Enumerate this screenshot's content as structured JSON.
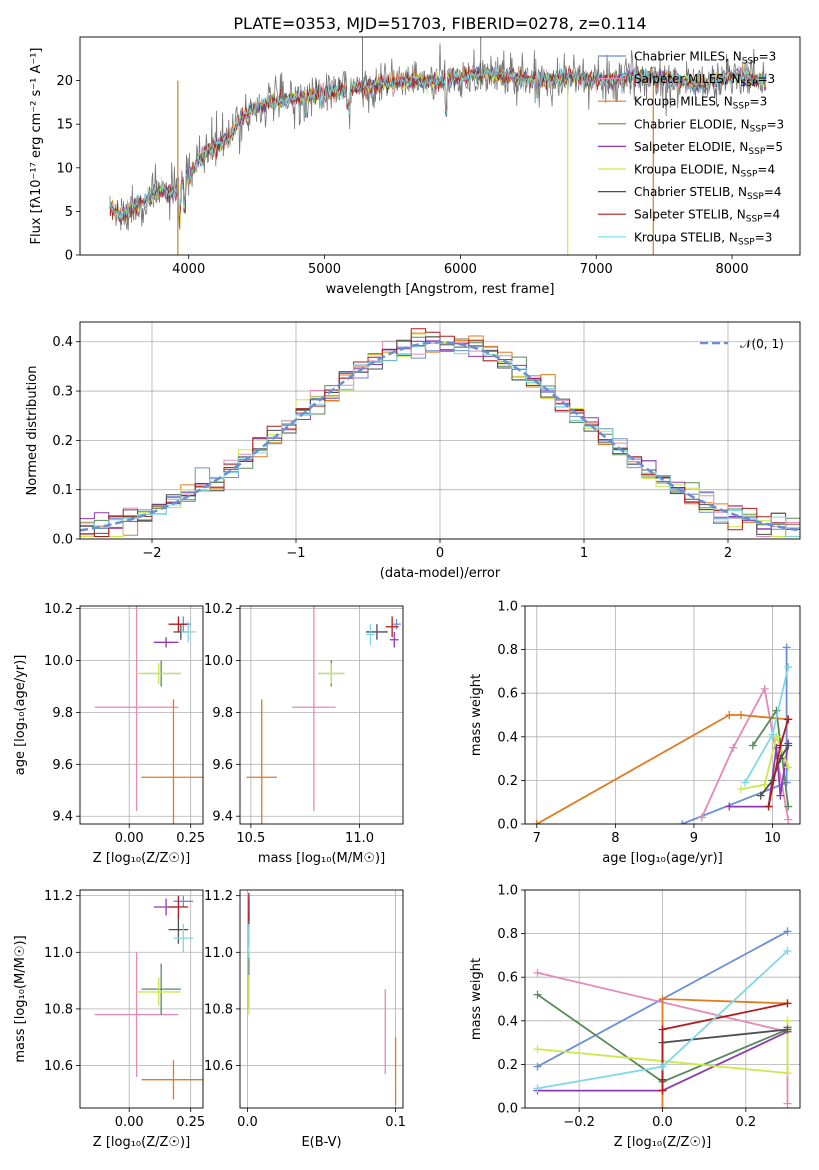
{
  "figure": {
    "title": "PLATE=0353, MJD=51703, FIBERID=0278, z=0.114"
  },
  "models": [
    {
      "name": "Chabrier MILES",
      "n_ssp": "3",
      "color": "#6a8fd6"
    },
    {
      "name": "Salpeter MILES",
      "n_ssp": "3",
      "color": "#e589b8"
    },
    {
      "name": "Kroupa MILES",
      "n_ssp": "3",
      "color": "#e07b1f"
    },
    {
      "name": "Chabrier ELODIE",
      "n_ssp": "3",
      "color": "#5a8a5a"
    },
    {
      "name": "Salpeter ELODIE",
      "n_ssp": "5",
      "color": "#8e3ab5"
    },
    {
      "name": "Kroupa ELODIE",
      "n_ssp": "4",
      "color": "#cde84a"
    },
    {
      "name": "Chabrier STELIB",
      "n_ssp": "4",
      "color": "#4f4f4f"
    },
    {
      "name": "Salpeter STELIB",
      "n_ssp": "4",
      "color": "#b01c1c"
    },
    {
      "name": "Kroupa STELIB",
      "n_ssp": "3",
      "color": "#7fd8e3"
    }
  ],
  "chart_data": [
    {
      "id": "spectrum",
      "type": "line",
      "xlabel": "wavelength [Angstrom, rest frame]",
      "ylabel": "Flux [fλ10⁻¹⁷ erg cm⁻² s⁻¹ A⁻¹]",
      "xlim": [
        3200,
        8500
      ],
      "ylim": [
        0,
        25
      ],
      "xticks": [
        4000,
        5000,
        6000,
        7000,
        8000
      ],
      "yticks": [
        0,
        5,
        10,
        15,
        20
      ],
      "grid": false,
      "legend": "top-right",
      "continuum_x": [
        3420,
        3500,
        3600,
        3700,
        3800,
        3900,
        4000,
        4100,
        4200,
        4300,
        4400,
        4500,
        4600,
        4800,
        5000,
        5200,
        5400,
        5600,
        5800,
        6000,
        6200,
        6400,
        6600,
        6800,
        7000,
        7200,
        7400,
        7600,
        7800,
        8000,
        8250
      ],
      "continuum_y": [
        5.5,
        4.5,
        5.5,
        6.5,
        7.5,
        7.0,
        9.0,
        11.5,
        12.5,
        13.5,
        16.0,
        17.0,
        17.5,
        18.0,
        18.5,
        19.0,
        19.5,
        20.0,
        19.8,
        20.5,
        20.8,
        20.5,
        20.0,
        20.5,
        20.0,
        20.2,
        20.5,
        20.0,
        19.5,
        20.5,
        20.0
      ],
      "dropouts": [
        {
          "x": 3920,
          "model": "Kroupa MILES"
        },
        {
          "x": 6790,
          "model": "Kroupa ELODIE"
        },
        {
          "x": 7420,
          "model": "Kroupa MILES"
        }
      ]
    },
    {
      "id": "residuals",
      "type": "histogram",
      "xlabel": "(data-model)/error",
      "ylabel": "Normed distribution",
      "xlim": [
        -2.5,
        2.5
      ],
      "ylim": [
        0,
        0.44
      ],
      "xticks": [
        -2,
        -1,
        0,
        1,
        2
      ],
      "yticks": [
        0.0,
        0.1,
        0.2,
        0.3,
        0.4
      ],
      "grid": true,
      "legend": "top-right",
      "reference_curve": "𝒩(0, 1)",
      "bin_width": 0.1
    },
    {
      "id": "age-vs-Z",
      "type": "errorbar",
      "xlabel": "Z [log₁₀(Z/Z☉)]",
      "ylabel": "age  [log₁₀(age/yr)]",
      "xlim": [
        -0.2,
        0.3
      ],
      "ylim": [
        9.37,
        10.21
      ],
      "xticks": [
        0.0,
        0.25
      ],
      "yticks": [
        9.4,
        9.6,
        9.8,
        10.0,
        10.2
      ],
      "grid": true,
      "points": [
        {
          "model": "Chabrier MILES",
          "x": 0.22,
          "y": 10.14,
          "xerr": 0.03,
          "yerr": 0.03
        },
        {
          "model": "Salpeter MILES",
          "x": 0.03,
          "y": 9.82,
          "xerr": 0.17,
          "yerr": 0.4
        },
        {
          "model": "Kroupa MILES",
          "x": 0.18,
          "y": 9.55,
          "xerr": 0.13,
          "yerr": 0.3
        },
        {
          "model": "Chabrier ELODIE",
          "x": 0.13,
          "y": 9.95,
          "xerr": 0.08,
          "yerr": 0.05
        },
        {
          "model": "Salpeter ELODIE",
          "x": 0.15,
          "y": 10.07,
          "xerr": 0.05,
          "yerr": 0.02
        },
        {
          "model": "Kroupa ELODIE",
          "x": 0.12,
          "y": 9.95,
          "xerr": 0.09,
          "yerr": 0.04
        },
        {
          "model": "Chabrier STELIB",
          "x": 0.21,
          "y": 10.11,
          "xerr": 0.03,
          "yerr": 0.03
        },
        {
          "model": "Salpeter STELIB",
          "x": 0.2,
          "y": 10.14,
          "xerr": 0.04,
          "yerr": 0.03
        },
        {
          "model": "Kroupa STELIB",
          "x": 0.24,
          "y": 10.11,
          "xerr": 0.03,
          "yerr": 0.04
        }
      ]
    },
    {
      "id": "age-vs-mass",
      "type": "errorbar",
      "xlabel": "mass [log₁₀(M/M☉)]",
      "ylabel": "",
      "xlim": [
        10.45,
        11.2
      ],
      "ylim": [
        9.37,
        10.21
      ],
      "xticks": [
        10.5,
        11.0
      ],
      "yticks": [
        9.4,
        9.6,
        9.8,
        10.0,
        10.2
      ],
      "grid": true,
      "points": [
        {
          "model": "Chabrier MILES",
          "x": 11.17,
          "y": 10.14,
          "xerr": 0.02,
          "yerr": 0.02
        },
        {
          "model": "Salpeter MILES",
          "x": 10.79,
          "y": 9.82,
          "xerr": 0.1,
          "yerr": 0.4
        },
        {
          "model": "Kroupa MILES",
          "x": 10.55,
          "y": 9.55,
          "xerr": 0.07,
          "yerr": 0.3
        },
        {
          "model": "Chabrier ELODIE",
          "x": 10.87,
          "y": 9.95,
          "xerr": 0.06,
          "yerr": 0.05
        },
        {
          "model": "Salpeter ELODIE",
          "x": 11.16,
          "y": 10.08,
          "xerr": 0.02,
          "yerr": 0.03
        },
        {
          "model": "Kroupa ELODIE",
          "x": 10.87,
          "y": 9.95,
          "xerr": 0.06,
          "yerr": 0.04
        },
        {
          "model": "Chabrier STELIB",
          "x": 11.08,
          "y": 10.11,
          "xerr": 0.05,
          "yerr": 0.03
        },
        {
          "model": "Salpeter STELIB",
          "x": 11.15,
          "y": 10.13,
          "xerr": 0.03,
          "yerr": 0.04
        },
        {
          "model": "Kroupa STELIB",
          "x": 11.05,
          "y": 10.1,
          "xerr": 0.02,
          "yerr": 0.04
        }
      ]
    },
    {
      "id": "weight-vs-age",
      "type": "line",
      "xlabel": "age  [log₁₀(age/yr)]",
      "ylabel": "mass weight",
      "xlim": [
        6.85,
        10.35
      ],
      "ylim": [
        0,
        1
      ],
      "xticks": [
        7,
        8,
        9,
        10
      ],
      "yticks": [
        0.0,
        0.2,
        0.4,
        0.6,
        0.8,
        1.0
      ],
      "grid": true,
      "series": [
        {
          "model": "Chabrier MILES",
          "x": [
            8.85,
            10.18,
            10.18
          ],
          "y": [
            0.0,
            0.19,
            0.81
          ]
        },
        {
          "model": "Salpeter MILES",
          "x": [
            9.1,
            9.5,
            9.9,
            10.2
          ],
          "y": [
            0.03,
            0.35,
            0.62,
            0.02
          ]
        },
        {
          "model": "Kroupa MILES",
          "x": [
            7.0,
            9.45,
            9.6,
            10.2
          ],
          "y": [
            0.0,
            0.5,
            0.5,
            0.48
          ]
        },
        {
          "model": "Chabrier ELODIE",
          "x": [
            9.75,
            10.05,
            10.2
          ],
          "y": [
            0.36,
            0.52,
            0.08
          ]
        },
        {
          "model": "Salpeter ELODIE",
          "x": [
            9.45,
            9.95,
            10.05,
            10.1,
            10.2
          ],
          "y": [
            0.08,
            0.08,
            0.35,
            0.13,
            0.37
          ]
        },
        {
          "model": "Kroupa ELODIE",
          "x": [
            9.6,
            9.9,
            10.05,
            10.2
          ],
          "y": [
            0.16,
            0.18,
            0.4,
            0.26
          ]
        },
        {
          "model": "Chabrier STELIB",
          "x": [
            9.85,
            10.0,
            10.1,
            10.2
          ],
          "y": [
            0.13,
            0.2,
            0.3,
            0.36
          ]
        },
        {
          "model": "Salpeter STELIB",
          "x": [
            9.95,
            10.1,
            10.2
          ],
          "y": [
            0.08,
            0.36,
            0.48
          ]
        },
        {
          "model": "Kroupa STELIB",
          "x": [
            9.65,
            10.0,
            10.2
          ],
          "y": [
            0.19,
            0.41,
            0.72
          ]
        }
      ]
    },
    {
      "id": "mass-vs-Z",
      "type": "errorbar",
      "xlabel": "Z [log₁₀(Z/Z☉)]",
      "ylabel": "mass [log₁₀(M/M☉)]",
      "xlim": [
        -0.2,
        0.3
      ],
      "ylim": [
        10.45,
        11.22
      ],
      "xticks": [
        0.0,
        0.25
      ],
      "yticks": [
        10.6,
        10.8,
        11.0,
        11.2
      ],
      "grid": true,
      "points": [
        {
          "model": "Chabrier MILES",
          "x": 0.22,
          "y": 11.18,
          "xerr": 0.04,
          "yerr": 0.02
        },
        {
          "model": "Salpeter MILES",
          "x": 0.03,
          "y": 10.78,
          "xerr": 0.17,
          "yerr": 0.22
        },
        {
          "model": "Kroupa MILES",
          "x": 0.18,
          "y": 10.55,
          "xerr": 0.13,
          "yerr": 0.07
        },
        {
          "model": "Chabrier ELODIE",
          "x": 0.13,
          "y": 10.87,
          "xerr": 0.08,
          "yerr": 0.09
        },
        {
          "model": "Salpeter ELODIE",
          "x": 0.15,
          "y": 11.16,
          "xerr": 0.05,
          "yerr": 0.03
        },
        {
          "model": "Kroupa ELODIE",
          "x": 0.12,
          "y": 10.86,
          "xerr": 0.09,
          "yerr": 0.05
        },
        {
          "model": "Chabrier STELIB",
          "x": 0.2,
          "y": 11.08,
          "xerr": 0.04,
          "yerr": 0.05
        },
        {
          "model": "Salpeter STELIB",
          "x": 0.2,
          "y": 11.16,
          "xerr": 0.04,
          "yerr": 0.04
        },
        {
          "model": "Kroupa STELIB",
          "x": 0.22,
          "y": 11.05,
          "xerr": 0.04,
          "yerr": 0.05
        }
      ]
    },
    {
      "id": "mass-vs-ebv",
      "type": "errorbar",
      "xlabel": "E(B-V)",
      "ylabel": "",
      "xlim": [
        -0.005,
        0.105
      ],
      "ylim": [
        10.45,
        11.22
      ],
      "xticks": [
        0.0,
        0.1
      ],
      "yticks": [
        10.6,
        10.8,
        11.0,
        11.2
      ],
      "grid": true,
      "points": [
        {
          "model": "Chabrier MILES",
          "x": 0.001,
          "y": 11.15,
          "xerr": 0,
          "yerr": 0.05
        },
        {
          "model": "Salpeter MILES",
          "x": 0.093,
          "y": 10.72,
          "xerr": 0,
          "yerr": 0.15
        },
        {
          "model": "Kroupa MILES",
          "x": 0.1,
          "y": 10.58,
          "xerr": 0,
          "yerr": 0.12
        },
        {
          "model": "Chabrier ELODIE",
          "x": 0.001,
          "y": 10.9,
          "xerr": 0,
          "yerr": 0.1
        },
        {
          "model": "Salpeter ELODIE",
          "x": 0.001,
          "y": 11.14,
          "xerr": 0,
          "yerr": 0.05
        },
        {
          "model": "Kroupa ELODIE",
          "x": 0.001,
          "y": 10.85,
          "xerr": 0,
          "yerr": 0.07
        },
        {
          "model": "Chabrier STELIB",
          "x": 0.001,
          "y": 11.08,
          "xerr": 0,
          "yerr": 0.06
        },
        {
          "model": "Salpeter STELIB",
          "x": 0.001,
          "y": 11.16,
          "xerr": 0,
          "yerr": 0.05
        },
        {
          "model": "Kroupa STELIB",
          "x": 0.001,
          "y": 11.04,
          "xerr": 0,
          "yerr": 0.06
        }
      ]
    },
    {
      "id": "weight-vs-Z",
      "type": "line",
      "xlabel": "Z [log₁₀(Z/Z☉)]",
      "ylabel": "mass weight",
      "xlim": [
        -0.33,
        0.33
      ],
      "ylim": [
        0,
        1
      ],
      "xticks": [
        -0.2,
        0.0,
        0.2
      ],
      "yticks": [
        0.0,
        0.2,
        0.4,
        0.6,
        0.8,
        1.0
      ],
      "grid": true,
      "series": [
        {
          "model": "Chabrier MILES",
          "x": [
            -0.3,
            0.3
          ],
          "y": [
            0.19,
            0.81
          ]
        },
        {
          "model": "Salpeter MILES",
          "x": [
            -0.3,
            0.3,
            0.3
          ],
          "y": [
            0.62,
            0.35,
            0.02
          ]
        },
        {
          "model": "Kroupa MILES",
          "x": [
            0.0,
            0.0,
            0.3
          ],
          "y": [
            0.0,
            0.5,
            0.48
          ]
        },
        {
          "model": "Chabrier ELODIE",
          "x": [
            -0.3,
            0.0,
            0.3
          ],
          "y": [
            0.52,
            0.12,
            0.36
          ]
        },
        {
          "model": "Salpeter ELODIE",
          "x": [
            -0.3,
            0.0,
            0.3,
            0.3
          ],
          "y": [
            0.08,
            0.08,
            0.35,
            0.37
          ]
        },
        {
          "model": "Kroupa ELODIE",
          "x": [
            -0.3,
            0.3,
            0.3
          ],
          "y": [
            0.27,
            0.16,
            0.4
          ]
        },
        {
          "model": "Chabrier STELIB",
          "x": [
            0.0,
            0.0,
            0.3
          ],
          "y": [
            0.13,
            0.3,
            0.36
          ]
        },
        {
          "model": "Salpeter STELIB",
          "x": [
            0.0,
            0.0,
            0.3
          ],
          "y": [
            0.08,
            0.36,
            0.48
          ]
        },
        {
          "model": "Kroupa STELIB",
          "x": [
            -0.3,
            0.0,
            0.3
          ],
          "y": [
            0.09,
            0.19,
            0.72
          ]
        }
      ]
    }
  ]
}
